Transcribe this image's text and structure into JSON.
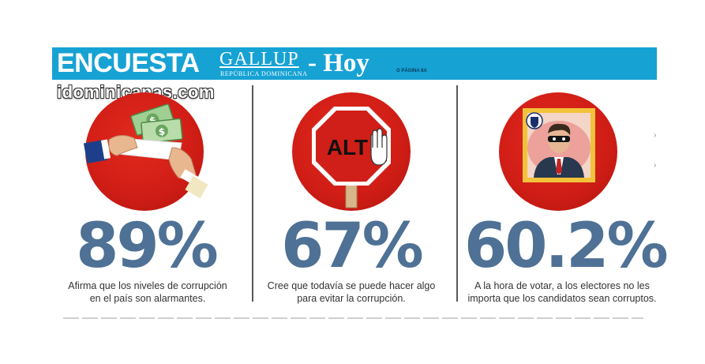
{
  "header": {
    "title": "ENCUESTA",
    "brand": "GALLUP",
    "brand_sub": "REPÚBLICA DOMINICANA",
    "publication": "- Hoy",
    "page_ref": "O PÁGINA 8A"
  },
  "watermark": "idominicanas.com",
  "stats": [
    {
      "value": "89%",
      "caption_line1": "Afirma que los niveles de corrupción",
      "caption_line2": "en el país son alarmantes.",
      "icon": "money-bribe-icon"
    },
    {
      "value": "67%",
      "caption_line1": "Cree que todavía se puede hacer algo",
      "caption_line2": "para evitar la corrupción.",
      "icon": "stop-sign-icon"
    },
    {
      "value": "60.2%",
      "caption_line1": "A la hora de votar, a los electores no les",
      "caption_line2": "importa que los candidatos sean corruptos.",
      "icon": "masked-politician-icon"
    }
  ],
  "stop_sign_text": "ALT",
  "colors": {
    "banner": "#17a2d4",
    "circle": "#d11e16",
    "percent": "#4e7195"
  }
}
